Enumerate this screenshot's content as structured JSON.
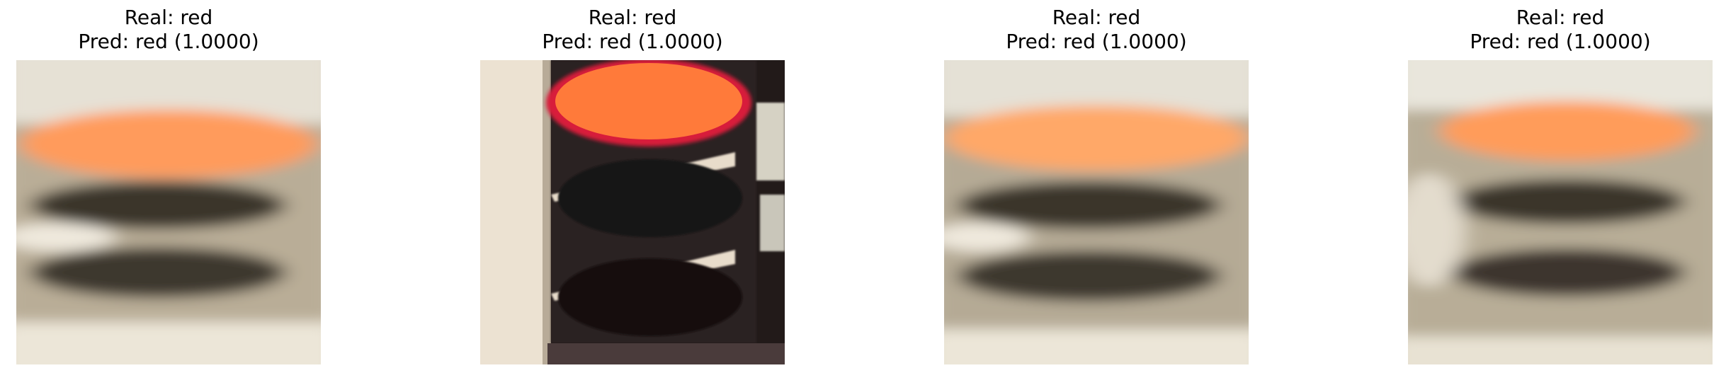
{
  "samples": [
    {
      "real": "Real: red",
      "pred": "Pred: red (1.0000)",
      "image": "blurred-traffic-light-red"
    },
    {
      "real": "Real: red",
      "pred": "Pred: red (1.0000)",
      "image": "traffic-light-red-closeup"
    },
    {
      "real": "Real: red",
      "pred": "Pred: red (1.0000)",
      "image": "blurred-traffic-light-red"
    },
    {
      "real": "Real: red",
      "pred": "Pred: red (1.0000)",
      "image": "blurred-traffic-light-red"
    }
  ],
  "colors": {
    "lit_red": "#ff8a4a",
    "housing_dark": "#2a2321",
    "background_light": "#e8e4da"
  }
}
